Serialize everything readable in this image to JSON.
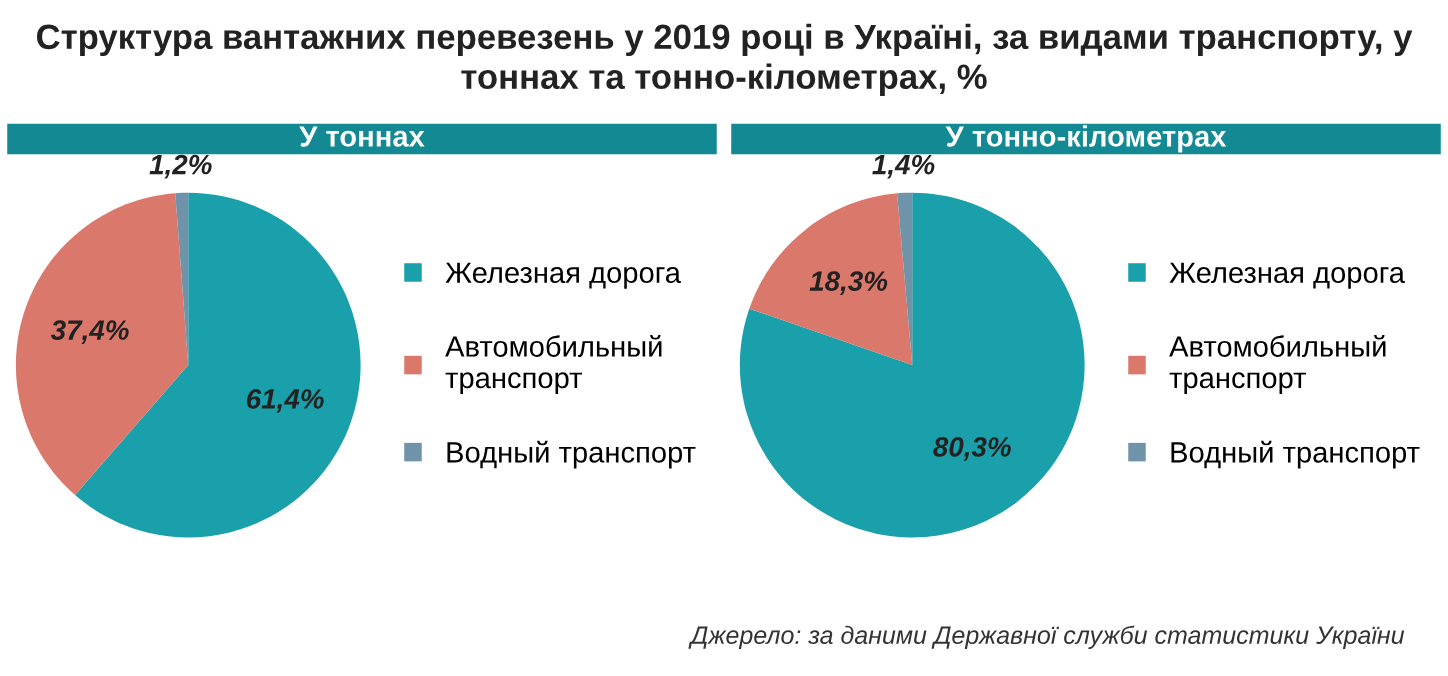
{
  "chart_data": [
    {
      "type": "pie",
      "title": "Структура вантажних перевезень у 2019 році в Україні, за видами транспорту, у тоннах та тонно-кілометрах, %",
      "subtitle": "У тоннах",
      "categories": [
        "Железная дорога",
        "Автомобильный транспорт",
        "Водный транспорт"
      ],
      "values": [
        61.4,
        37.4,
        1.2
      ],
      "colors": [
        "#1aa0aa",
        "#d9786b",
        "#6f93a8"
      ],
      "value_labels": [
        "61,4%",
        "37,4%",
        "1,2%"
      ],
      "legend": "right"
    },
    {
      "type": "pie",
      "subtitle": "У тонно-кілометрах",
      "categories": [
        "Железная дорога",
        "Автомобильный транспорт",
        "Водный транспорт"
      ],
      "values": [
        80.3,
        18.3,
        1.4
      ],
      "colors": [
        "#1aa0aa",
        "#d9786b",
        "#6f93a8"
      ],
      "value_labels": [
        "80,3%",
        "18,3%",
        "1,4%"
      ],
      "legend": "right",
      "annotations": [
        "Джерело: за даними Державної служби статистики України"
      ]
    }
  ]
}
